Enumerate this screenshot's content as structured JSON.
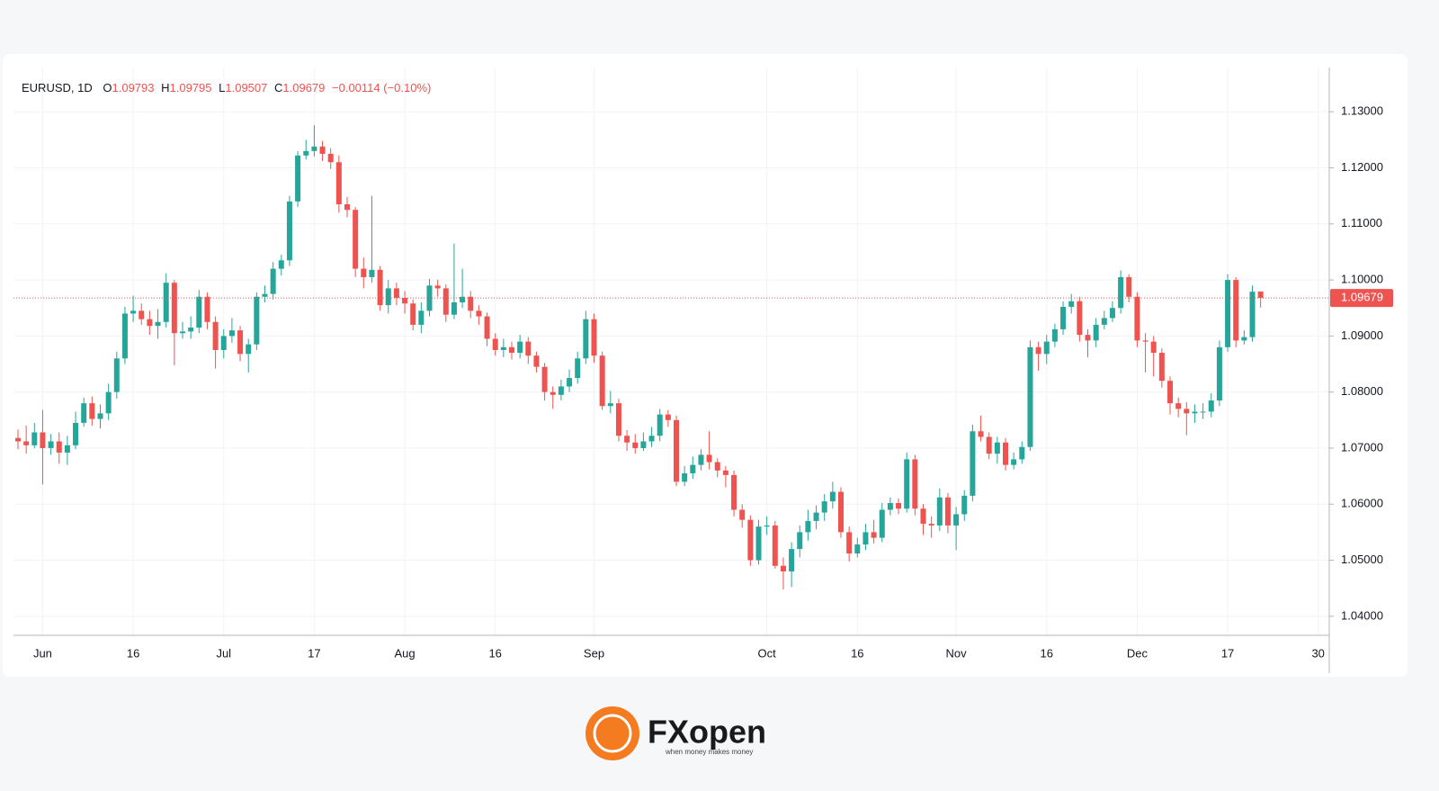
{
  "chart_data": {
    "type": "candlestick",
    "symbol": "EURUSD, 1D",
    "ohlc_letters": [
      "O",
      "H",
      "L",
      "C"
    ],
    "change_label": "−0.00114 (−0.10%)",
    "up_color": "#26a69a",
    "down_color": "#ef5350",
    "grid": true,
    "categories": [
      null,
      null,
      null,
      "Jun",
      null,
      null,
      null,
      null,
      null,
      null,
      null,
      null,
      null,
      null,
      "16",
      null,
      null,
      null,
      null,
      null,
      null,
      null,
      null,
      null,
      null,
      "Jul",
      null,
      null,
      null,
      null,
      null,
      null,
      null,
      null,
      null,
      null,
      "17",
      null,
      null,
      null,
      null,
      null,
      null,
      null,
      null,
      null,
      null,
      "Aug",
      null,
      null,
      null,
      null,
      null,
      null,
      null,
      null,
      null,
      null,
      "16",
      null,
      null,
      null,
      null,
      null,
      null,
      null,
      null,
      null,
      null,
      null,
      "Sep",
      null,
      null,
      null,
      null,
      null,
      null,
      null,
      null,
      null,
      null,
      null,
      null,
      null,
      null,
      null,
      null,
      null,
      null,
      null,
      null,
      "Oct",
      null,
      null,
      null,
      null,
      null,
      null,
      null,
      null,
      null,
      null,
      "16",
      null,
      null,
      null,
      null,
      null,
      null,
      null,
      null,
      null,
      null,
      null,
      "Nov",
      null,
      null,
      null,
      null,
      null,
      null,
      null,
      null,
      null,
      null,
      "16",
      null,
      null,
      null,
      null,
      null,
      null,
      null,
      null,
      null,
      null,
      "Dec",
      null,
      null,
      null,
      null,
      null,
      null,
      null,
      null,
      null,
      null,
      "17",
      null,
      null,
      null,
      null,
      null,
      null,
      null,
      null,
      null,
      null,
      "30"
    ],
    "open": [
      1.0718,
      1.0712,
      1.0705,
      1.0728,
      1.07,
      1.0712,
      1.0692,
      1.0705,
      1.0745,
      1.078,
      1.0752,
      1.0762,
      1.08,
      1.086,
      1.094,
      1.0945,
      1.093,
      1.0918,
      1.0925,
      1.0995,
      1.0905,
      1.0908,
      1.0915,
      1.097,
      1.0925,
      1.0875,
      1.09,
      1.091,
      1.0868,
      1.0885,
      1.097,
      1.0975,
      1.102,
      1.1035,
      1.114,
      1.1222,
      1.123,
      1.1238,
      1.1225,
      1.121,
      1.1135,
      1.1125,
      1.102,
      1.1005,
      1.1018,
      1.0955,
      1.0985,
      1.0968,
      1.0958,
      1.092,
      1.0945,
      1.099,
      1.0985,
      1.0938,
      1.096,
      1.097,
      1.0945,
      1.0935,
      1.0895,
      1.0875,
      1.088,
      1.087,
      1.089,
      1.0865,
      1.0845,
      1.08,
      1.0795,
      1.081,
      1.0825,
      1.086,
      1.093,
      1.0865,
      1.0775,
      1.078,
      1.0722,
      1.071,
      1.07,
      1.0712,
      1.0722,
      1.076,
      1.075,
      1.064,
      1.0655,
      1.067,
      1.0688,
      1.0675,
      1.066,
      1.0652,
      1.059,
      1.0572,
      1.05,
      1.056,
      1.0562,
      1.049,
      1.048,
      1.052,
      1.055,
      1.057,
      1.0585,
      1.0605,
      1.0622,
      1.055,
      1.0512,
      1.0528,
      1.055,
      1.054,
      1.059,
      1.0602,
      1.0592,
      1.068,
      1.0592,
      1.0565,
      1.0562,
      1.0612,
      1.0562,
      1.0582,
      1.0615,
      1.073,
      1.072,
      1.069,
      1.071,
      1.067,
      1.068,
      1.0702,
      1.088,
      1.0868,
      1.089,
      1.0912,
      1.0952,
      1.0962,
      1.0902,
      1.0892,
      1.092,
      1.0932,
      1.095,
      1.1005,
      1.097,
      1.0892,
      1.089,
      1.087,
      1.082,
      1.078,
      1.077,
      1.0762,
      1.0765,
      1.0765,
      1.0785,
      1.088,
      1.1,
      1.0892,
      1.0898,
      1.09793,
      null,
      null,
      null,
      null,
      null,
      null,
      null
    ],
    "high": [
      1.0733,
      1.074,
      1.0745,
      1.0768,
      1.0725,
      1.0728,
      1.0722,
      1.0765,
      1.079,
      1.0792,
      1.0778,
      1.0815,
      1.0872,
      1.0952,
      1.0972,
      1.0958,
      1.0945,
      1.0948,
      1.1012,
      1.1,
      1.0925,
      1.0935,
      1.0982,
      1.0978,
      1.0935,
      1.0912,
      1.0932,
      1.0918,
      1.0895,
      1.0978,
      1.099,
      1.1032,
      1.1045,
      1.115,
      1.123,
      1.125,
      1.1276,
      1.1248,
      1.1235,
      1.1222,
      1.1148,
      1.113,
      1.104,
      1.115,
      1.1025,
      1.1,
      1.0995,
      1.098,
      1.0965,
      1.096,
      1.1002,
      1.1,
      1.0992,
      1.1065,
      1.102,
      1.098,
      1.0955,
      1.0942,
      1.0905,
      1.0895,
      1.089,
      1.0902,
      1.0898,
      1.0872,
      1.0852,
      1.081,
      1.0822,
      1.084,
      1.0872,
      1.0945,
      1.094,
      1.0872,
      1.0802,
      1.0788,
      1.0732,
      1.0725,
      1.0728,
      1.0738,
      1.077,
      1.0768,
      1.0758,
      1.0668,
      1.0685,
      1.0698,
      1.073,
      1.0682,
      1.0668,
      1.066,
      1.06,
      1.058,
      1.0572,
      1.0578,
      1.057,
      1.0505,
      1.0532,
      1.0562,
      1.059,
      1.0598,
      1.0618,
      1.064,
      1.063,
      1.056,
      1.054,
      1.0565,
      1.0572,
      1.0602,
      1.0612,
      1.061,
      1.0692,
      1.0688,
      1.06,
      1.0578,
      1.0628,
      1.062,
      1.0595,
      1.0625,
      1.0742,
      1.0758,
      1.0728,
      1.072,
      1.0718,
      1.0692,
      1.0712,
      1.0892,
      1.089,
      1.0902,
      1.0922,
      1.0962,
      1.0975,
      1.097,
      1.0912,
      1.0932,
      1.0945,
      1.0962,
      1.1017,
      1.101,
      1.0978,
      1.0905,
      1.09,
      1.0878,
      1.0828,
      1.079,
      1.0782,
      1.0778,
      1.078,
      1.0798,
      1.0892,
      1.101,
      1.1005,
      1.091,
      1.099,
      1.09795,
      null,
      null,
      null,
      null,
      null,
      null,
      null
    ],
    "low": [
      1.0698,
      1.069,
      1.07,
      1.0635,
      1.0688,
      1.0672,
      1.067,
      1.0698,
      1.0738,
      1.074,
      1.0735,
      1.075,
      1.0788,
      1.085,
      1.0925,
      1.092,
      1.0902,
      1.0895,
      1.0915,
      1.0848,
      1.0895,
      1.0895,
      1.0905,
      1.0912,
      1.0842,
      1.086,
      1.0888,
      1.0855,
      1.0835,
      1.0875,
      1.096,
      1.0965,
      1.1008,
      1.1025,
      1.113,
      1.1215,
      1.122,
      1.1212,
      1.1198,
      1.112,
      1.1112,
      1.1005,
      1.0985,
      1.0995,
      1.0945,
      1.094,
      1.0955,
      1.094,
      1.091,
      1.0905,
      1.0935,
      1.097,
      1.0925,
      1.093,
      1.095,
      1.0932,
      1.092,
      1.0882,
      1.0865,
      1.0862,
      1.0858,
      1.086,
      1.085,
      1.0835,
      1.0785,
      1.077,
      1.0785,
      1.08,
      1.0815,
      1.085,
      1.0852,
      1.0768,
      1.0762,
      1.0712,
      1.0695,
      1.069,
      1.0695,
      1.0702,
      1.0712,
      1.0738,
      1.0632,
      1.0632,
      1.0645,
      1.066,
      1.0662,
      1.0648,
      1.063,
      1.0578,
      1.0558,
      1.049,
      1.0492,
      1.0545,
      1.0485,
      1.0448,
      1.0452,
      1.0505,
      1.0535,
      1.0555,
      1.057,
      1.0592,
      1.054,
      1.0498,
      1.0505,
      1.0518,
      1.053,
      1.0532,
      1.058,
      1.0582,
      1.0585,
      1.058,
      1.0545,
      1.054,
      1.0552,
      1.0548,
      1.0518,
      1.057,
      1.0605,
      1.0712,
      1.068,
      1.0672,
      1.066,
      1.0662,
      1.0672,
      1.0695,
      1.0838,
      1.085,
      1.088,
      1.0902,
      1.094,
      1.089,
      1.0862,
      1.088,
      1.0912,
      1.0925,
      1.094,
      1.096,
      1.088,
      1.0835,
      1.0828,
      1.0808,
      1.076,
      1.0755,
      1.0723,
      1.0745,
      1.0752,
      1.0755,
      1.0775,
      1.0872,
      1.088,
      1.0885,
      1.089,
      1.09507,
      null,
      null,
      null,
      null,
      null,
      null,
      null
    ],
    "close": [
      1.0712,
      1.0705,
      1.0728,
      1.07,
      1.0712,
      1.0692,
      1.0705,
      1.0745,
      1.078,
      1.0752,
      1.0762,
      1.08,
      1.086,
      1.094,
      1.0945,
      1.093,
      1.0918,
      1.0925,
      1.0995,
      1.0905,
      1.0908,
      1.0915,
      1.097,
      1.0925,
      1.0875,
      1.09,
      1.091,
      1.0868,
      1.0885,
      1.097,
      1.0975,
      1.102,
      1.1035,
      1.114,
      1.1222,
      1.123,
      1.1238,
      1.1225,
      1.121,
      1.1135,
      1.1125,
      1.102,
      1.1005,
      1.1018,
      1.0955,
      1.0985,
      1.0968,
      1.0958,
      1.092,
      1.0945,
      1.099,
      1.0985,
      1.0938,
      1.096,
      1.097,
      1.0945,
      1.0935,
      1.0895,
      1.0875,
      1.088,
      1.087,
      1.089,
      1.0865,
      1.0845,
      1.08,
      1.0795,
      1.081,
      1.0825,
      1.086,
      1.093,
      1.0865,
      1.0775,
      1.078,
      1.0722,
      1.071,
      1.07,
      1.0712,
      1.0722,
      1.076,
      1.075,
      1.064,
      1.0655,
      1.067,
      1.0688,
      1.0675,
      1.066,
      1.0652,
      1.059,
      1.0572,
      1.05,
      1.056,
      1.0562,
      1.049,
      1.048,
      1.052,
      1.055,
      1.057,
      1.0585,
      1.0605,
      1.0622,
      1.055,
      1.0512,
      1.0528,
      1.055,
      1.054,
      1.059,
      1.0602,
      1.0592,
      1.068,
      1.0592,
      1.0565,
      1.0562,
      1.0612,
      1.0562,
      1.0582,
      1.0615,
      1.073,
      1.072,
      1.069,
      1.071,
      1.067,
      1.068,
      1.0702,
      1.088,
      1.0868,
      1.089,
      1.0912,
      1.0952,
      1.0962,
      1.0902,
      1.0892,
      1.092,
      1.0932,
      1.095,
      1.1005,
      1.097,
      1.0892,
      1.089,
      1.087,
      1.082,
      1.078,
      1.077,
      1.0762,
      1.0765,
      1.0765,
      1.0785,
      1.088,
      1.1,
      1.0892,
      1.0898,
      1.0979,
      1.09679,
      null,
      null,
      null,
      null,
      null,
      null,
      null
    ],
    "ylim": [
      1.0366,
      1.1379
    ],
    "yticks": [
      {
        "value": 1.04,
        "label": "1.04000"
      },
      {
        "value": 1.05,
        "label": "1.05000"
      },
      {
        "value": 1.06,
        "label": "1.06000"
      },
      {
        "value": 1.07,
        "label": "1.07000"
      },
      {
        "value": 1.08,
        "label": "1.08000"
      },
      {
        "value": 1.09,
        "label": "1.09000"
      },
      {
        "value": 1.1,
        "label": "1.10000"
      },
      {
        "value": 1.11,
        "label": "1.11000"
      },
      {
        "value": 1.12,
        "label": "1.12000"
      },
      {
        "value": 1.13,
        "label": "1.13000"
      }
    ]
  },
  "brand": {
    "name": "FXopen",
    "tagline": "when money makes money"
  }
}
